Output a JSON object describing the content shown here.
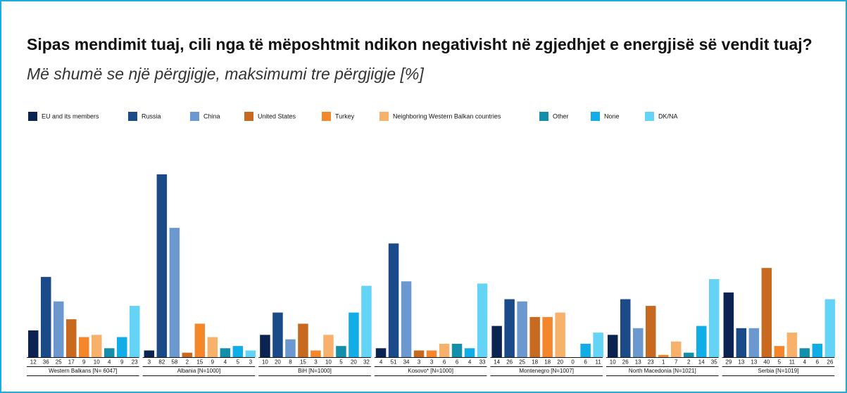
{
  "chart_data": {
    "type": "bar",
    "title": "Sipas mendimit tuaj, cili nga të mëposhtmit ndikon negativisht në zgjedhjet e energjisë së vendit tuaj?",
    "subtitle": "Më shumë se një përgjigje, maksimumi tre përgjigje [%]",
    "categories": [
      "Western Balkans [N= 6047]",
      "Albania [N=1000]",
      "BiH [N=1000]",
      "Kosovo* [N=1000]",
      "Montenegro [N=1007]",
      "North Macedonia [N=1021]",
      "Serbia [N=1019]"
    ],
    "series": [
      {
        "name": "EU and its members",
        "color": "#0b2350",
        "values": [
          12,
          3,
          10,
          4,
          14,
          10,
          29
        ]
      },
      {
        "name": "Russia",
        "color": "#1b4a88",
        "values": [
          36,
          82,
          20,
          51,
          26,
          26,
          13
        ]
      },
      {
        "name": "China",
        "color": "#6b98cf",
        "values": [
          25,
          58,
          8,
          34,
          25,
          13,
          13
        ]
      },
      {
        "name": "United States",
        "color": "#c7691f",
        "values": [
          17,
          2,
          15,
          3,
          18,
          23,
          40
        ]
      },
      {
        "name": "Turkey",
        "color": "#f4862b",
        "values": [
          9,
          15,
          3,
          3,
          18,
          1,
          5
        ]
      },
      {
        "name": "Neighboring Western Balkan countries",
        "color": "#f7b16b",
        "values": [
          10,
          9,
          10,
          6,
          20,
          7,
          11
        ]
      },
      {
        "name": "Other",
        "color": "#148fa9",
        "values": [
          4,
          4,
          5,
          6,
          0,
          2,
          4
        ]
      },
      {
        "name": "None",
        "color": "#11ade7",
        "values": [
          9,
          5,
          20,
          4,
          6,
          14,
          6
        ]
      },
      {
        "name": "DK/NA",
        "color": "#63d4f6",
        "values": [
          23,
          3,
          32,
          33,
          11,
          35,
          26
        ]
      }
    ]
  }
}
